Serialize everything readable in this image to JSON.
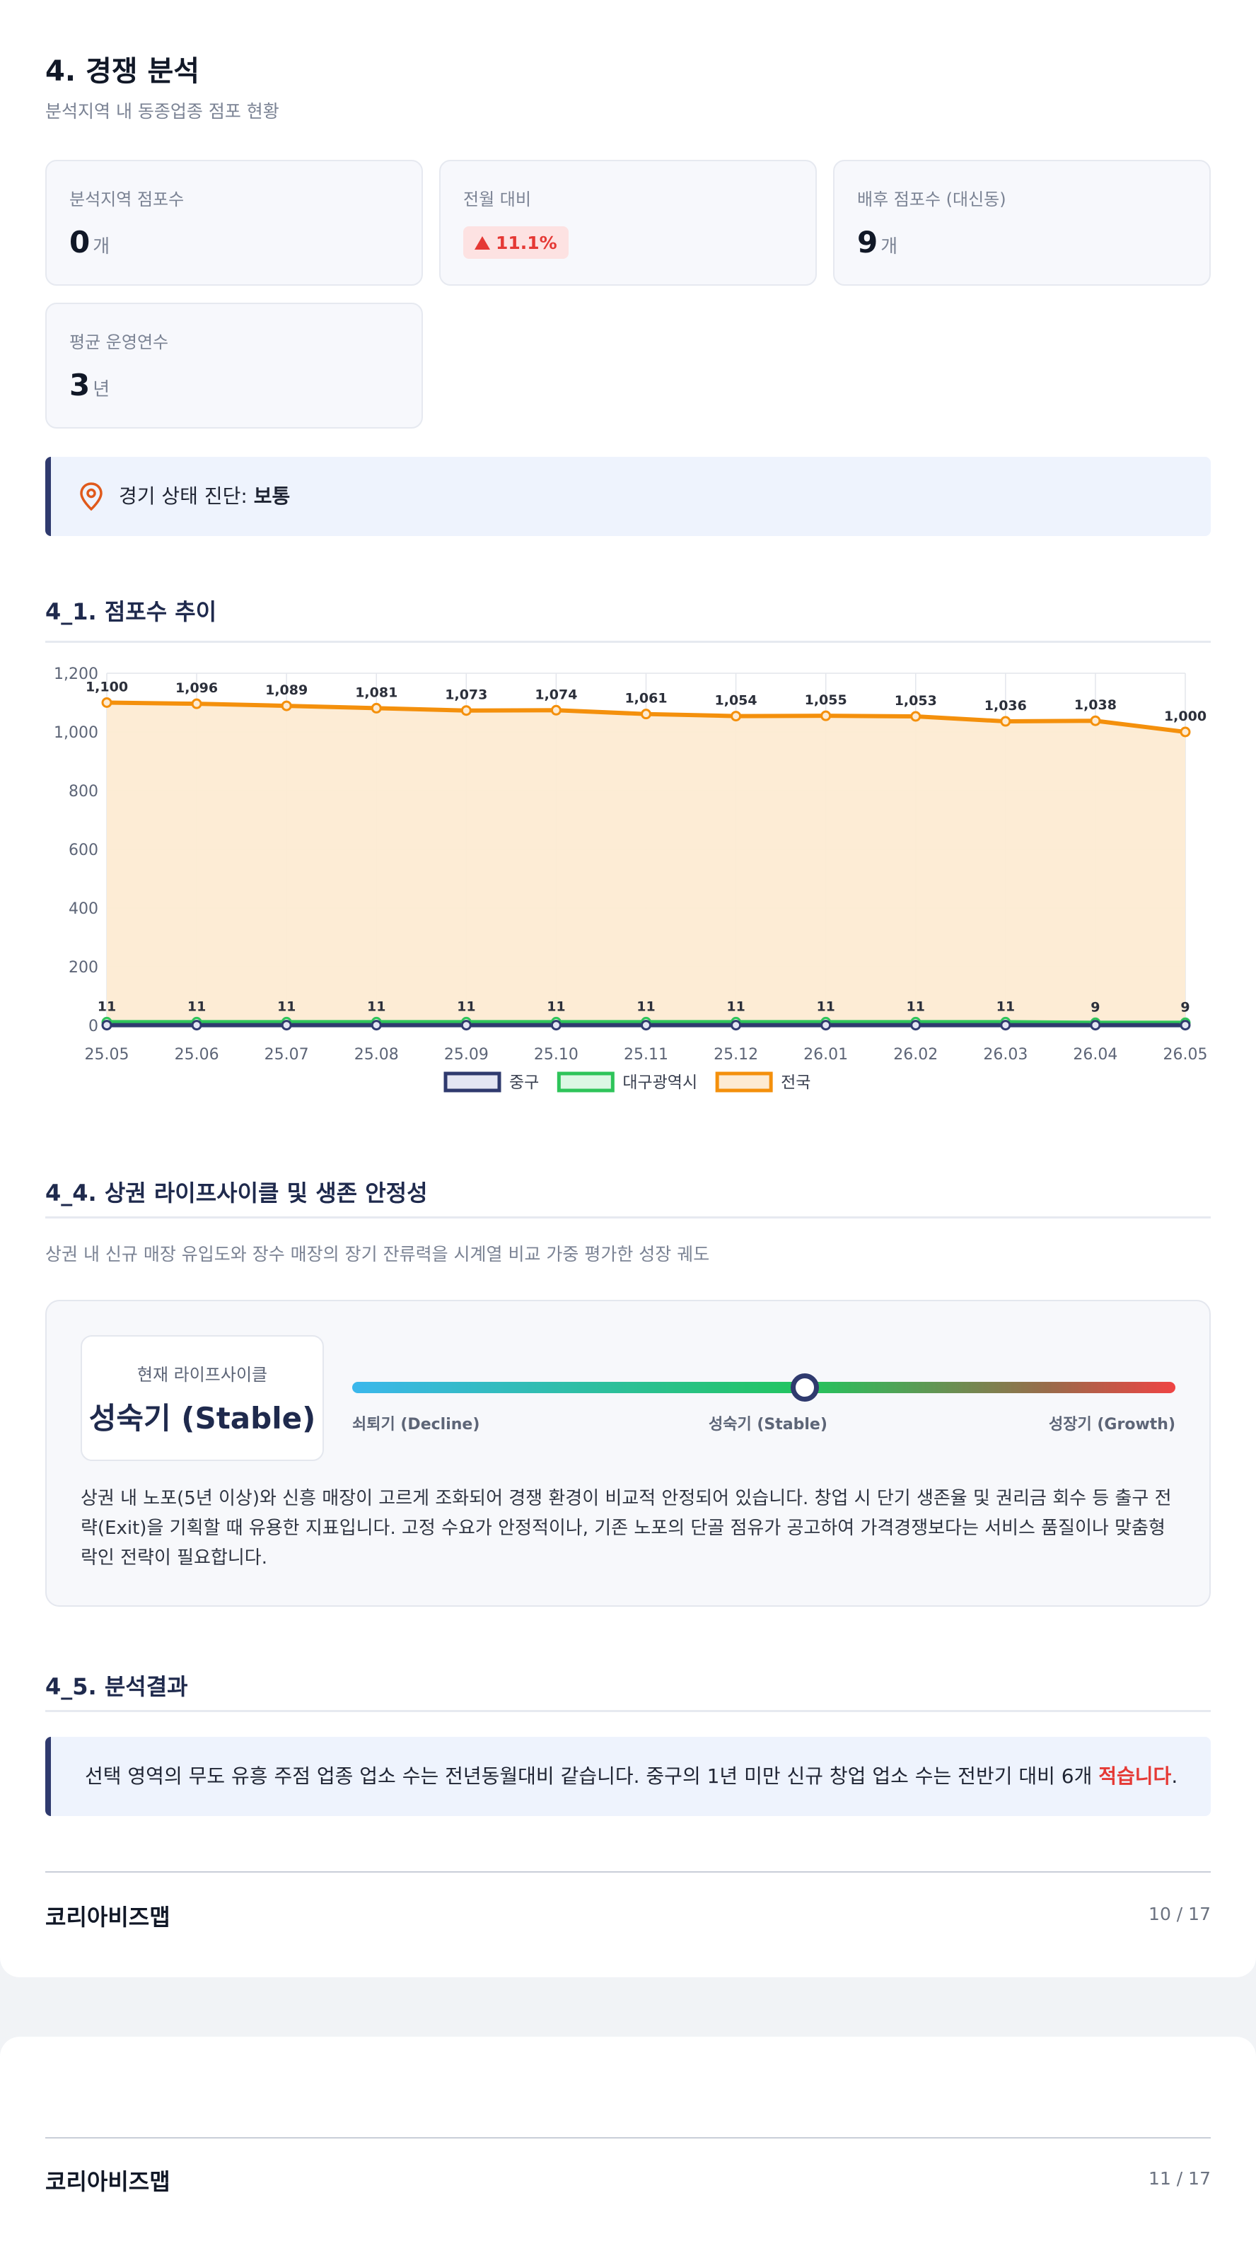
{
  "section": {
    "title": "4. 경쟁 분석",
    "subtitle": "분석지역 내 동종업종 점포 현황"
  },
  "cards": [
    {
      "label": "분석지역 점포수",
      "value": "0",
      "unit": "개"
    },
    {
      "label": "전월 대비",
      "badge": "11.1%"
    },
    {
      "label": "배후 점포수 (대신동)",
      "value": "9",
      "unit": "개"
    },
    {
      "label": "평균 운영연수",
      "value": "3",
      "unit": "년"
    }
  ],
  "diagnosis": {
    "label": "경기 상태 진단:",
    "value": "보통",
    "icon": "map-pin-icon"
  },
  "trend": {
    "title": "4_1. 점포수 추이"
  },
  "chart_data": {
    "type": "line",
    "x": [
      "25.05",
      "25.06",
      "25.07",
      "25.08",
      "25.09",
      "25.10",
      "25.11",
      "25.12",
      "26.01",
      "26.02",
      "26.03",
      "26.04",
      "26.05"
    ],
    "ylim": [
      0,
      1200
    ],
    "yticks": [
      0,
      200,
      400,
      600,
      800,
      1000,
      1200
    ],
    "grid": true,
    "legend_position": "bottom",
    "series": [
      {
        "name": "중구",
        "color": "#2f3a6e",
        "fill": "#e4e6f3",
        "values": [
          1,
          1,
          1,
          1,
          1,
          1,
          1,
          1,
          1,
          1,
          1,
          1,
          1
        ],
        "labels": []
      },
      {
        "name": "대구광역시",
        "color": "#2ec45a",
        "fill": "#dcf7e4",
        "values": [
          11,
          11,
          11,
          11,
          11,
          11,
          11,
          11,
          11,
          11,
          11,
          9,
          9
        ],
        "labels": [
          "11",
          "11",
          "11",
          "11",
          "11",
          "11",
          "11",
          "11",
          "11",
          "11",
          "11",
          "9",
          "9"
        ]
      },
      {
        "name": "전국",
        "color": "#f4900c",
        "fill": "#fdebd3",
        "values": [
          1100,
          1096,
          1089,
          1081,
          1073,
          1074,
          1061,
          1054,
          1055,
          1053,
          1036,
          1038,
          1000
        ],
        "labels": [
          "1,100",
          "1,096",
          "1,089",
          "1,081",
          "1,073",
          "1,074",
          "1,061",
          "1,054",
          "1,055",
          "1,053",
          "1,036",
          "1,038",
          "1,000"
        ]
      }
    ]
  },
  "lifecycle": {
    "title": "4_4. 상권 라이프사이클 및 생존 안정성",
    "description": "상권 내 신규 매장 유입도와 장수 매장의 장기 잔류력을 시계열 비교 가중 평가한 성장 궤도",
    "current_label": "현재 라이프사이클",
    "current_value": "성숙기 (Stable)",
    "position": 0.55,
    "scale_labels": [
      "쇠퇴기 (Decline)",
      "성숙기 (Stable)",
      "성장기 (Growth)"
    ],
    "body": "상권 내 노포(5년 이상)와 신흥 매장이 고르게 조화되어 경쟁 환경이 비교적 안정되어 있습니다. 창업 시 단기 생존율 및 권리금 회수 등 출구 전략(Exit)을 기획할 때 유용한 지표입니다. 고정 수요가 안정적이나, 기존 노포의 단골 점유가 공고하여 가격경쟁보다는 서비스 품질이나 맞춤형 락인 전략이 필요합니다."
  },
  "result": {
    "title": "4_5. 분석결과",
    "text_before": "선택 영역의 무도 유흥 주점 업종 업소 수는 전년동월대비 같습니다. 중구의 1년 미만 신규 창업 업소 수는 전반기 대비 6개 ",
    "highlight": "적습니다",
    "text_after": "."
  },
  "footer1": {
    "brand": "코리아비즈맵",
    "page": "10 / 17"
  },
  "footer2": {
    "brand": "코리아비즈맵",
    "page": "11 / 17"
  }
}
